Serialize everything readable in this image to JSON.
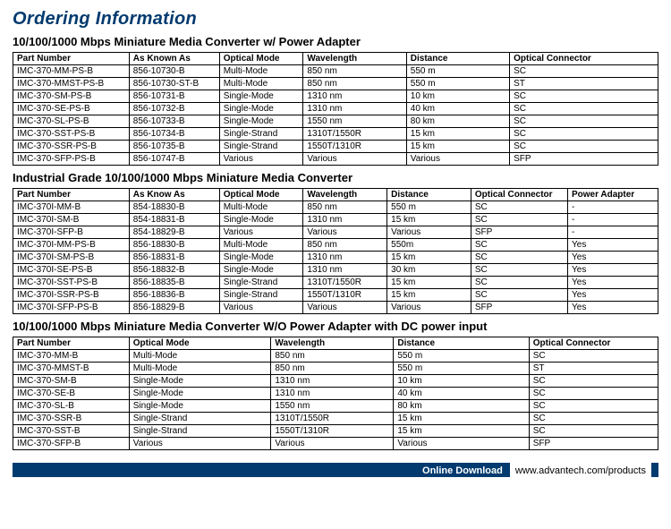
{
  "page_title": "Ordering Information",
  "section1": {
    "heading": "10/100/1000 Mbps Miniature Media Converter w/ Power Adapter",
    "columns": [
      "Part Number",
      "As Known As",
      "Optical Mode",
      "Wavelength",
      "Distance",
      "Optical Connector"
    ],
    "col_widths_pct": [
      18,
      14,
      13,
      16,
      16,
      23
    ],
    "rows": [
      [
        "IMC-370-MM-PS-B",
        "856-10730-B",
        "Multi-Mode",
        "850 nm",
        "550 m",
        "SC"
      ],
      [
        "IMC-370-MMST-PS-B",
        "856-10730-ST-B",
        "Multi-Mode",
        "850 nm",
        "550 m",
        "ST"
      ],
      [
        "IMC-370-SM-PS-B",
        "856-10731-B",
        "Single-Mode",
        "1310 nm",
        "10 km",
        "SC"
      ],
      [
        "IMC-370-SE-PS-B",
        "856-10732-B",
        "Single-Mode",
        "1310 nm",
        "40 km",
        "SC"
      ],
      [
        "IMC-370-SL-PS-B",
        "856-10733-B",
        "Single-Mode",
        "1550 nm",
        "80 km",
        "SC"
      ],
      [
        "IMC-370-SST-PS-B",
        "856-10734-B",
        "Single-Strand",
        "1310T/1550R",
        "15 km",
        "SC"
      ],
      [
        "IMC-370-SSR-PS-B",
        "856-10735-B",
        "Single-Strand",
        "1550T/1310R",
        "15 km",
        "SC"
      ],
      [
        "IMC-370-SFP-PS-B",
        "856-10747-B",
        "Various",
        "Various",
        "Various",
        "SFP"
      ]
    ]
  },
  "section2": {
    "heading": "Industrial Grade 10/100/1000 Mbps Miniature Media Converter",
    "columns": [
      "Part Number",
      "As Know As",
      "Optical Mode",
      "Wavelength",
      "Distance",
      "Optical Connector",
      "Power Adapter"
    ],
    "col_widths_pct": [
      18,
      14,
      13,
      13,
      13,
      15,
      14
    ],
    "rows": [
      [
        "IMC-370I-MM-B",
        "854-18830-B",
        "Multi-Mode",
        "850 nm",
        "550 m",
        "SC",
        "-"
      ],
      [
        "IMC-370I-SM-B",
        "854-18831-B",
        "Single-Mode",
        "1310 nm",
        "15 km",
        "SC",
        "-"
      ],
      [
        "IMC-370I-SFP-B",
        "854-18829-B",
        "Various",
        "Various",
        "Various",
        "SFP",
        "-"
      ],
      [
        "IMC-370I-MM-PS-B",
        "856-18830-B",
        "Multi-Mode",
        "850 nm",
        "550m",
        "SC",
        "Yes"
      ],
      [
        "IMC-370I-SM-PS-B",
        "856-18831-B",
        "Single-Mode",
        "1310 nm",
        "15 km",
        "SC",
        "Yes"
      ],
      [
        "IMC-370I-SE-PS-B",
        "856-18832-B",
        "Single-Mode",
        "1310 nm",
        "30 km",
        "SC",
        "Yes"
      ],
      [
        "IMC-370I-SST-PS-B",
        "856-18835-B",
        "Single-Strand",
        "1310T/1550R",
        "15 km",
        "SC",
        "Yes"
      ],
      [
        "IMC-370I-SSR-PS-B",
        "856-18836-B",
        "Single-Strand",
        "1550T/1310R",
        "15 km",
        "SC",
        "Yes"
      ],
      [
        "IMC-370I-SFP-PS-B",
        "856-18829-B",
        "Various",
        "Various",
        "Various",
        "SFP",
        "Yes"
      ]
    ]
  },
  "section3": {
    "heading": "10/100/1000 Mbps Miniature Media Converter W/O Power Adapter with DC power input",
    "columns": [
      "Part Number",
      "Optical Mode",
      "Wavelength",
      "Distance",
      "Optical Connector"
    ],
    "col_widths_pct": [
      18,
      22,
      19,
      21,
      20
    ],
    "rows": [
      [
        "IMC-370-MM-B",
        "Multi-Mode",
        "850 nm",
        "550 m",
        "SC"
      ],
      [
        "IMC-370-MMST-B",
        "Multi-Mode",
        "850 nm",
        "550 m",
        "ST"
      ],
      [
        "IMC-370-SM-B",
        "Single-Mode",
        "1310 nm",
        "10 km",
        "SC"
      ],
      [
        "IMC-370-SE-B",
        "Single-Mode",
        "1310 nm",
        "40 km",
        "SC"
      ],
      [
        "IMC-370-SL-B",
        "Single-Mode",
        "1550 nm",
        "80 km",
        "SC"
      ],
      [
        "IMC-370-SSR-B",
        "Single-Strand",
        "1310T/1550R",
        "15 km",
        "SC"
      ],
      [
        "IMC-370-SST-B",
        "Single-Strand",
        "1550T/1310R",
        "15 km",
        "SC"
      ],
      [
        "IMC-370-SFP-B",
        "Various",
        "Various",
        "Various",
        "SFP"
      ]
    ]
  },
  "footer": {
    "download_label": "Online Download",
    "url": "www.advantech.com/products"
  },
  "colors": {
    "brand_blue": "#003a6f",
    "text": "#000000",
    "background": "#ffffff",
    "border": "#000000"
  }
}
